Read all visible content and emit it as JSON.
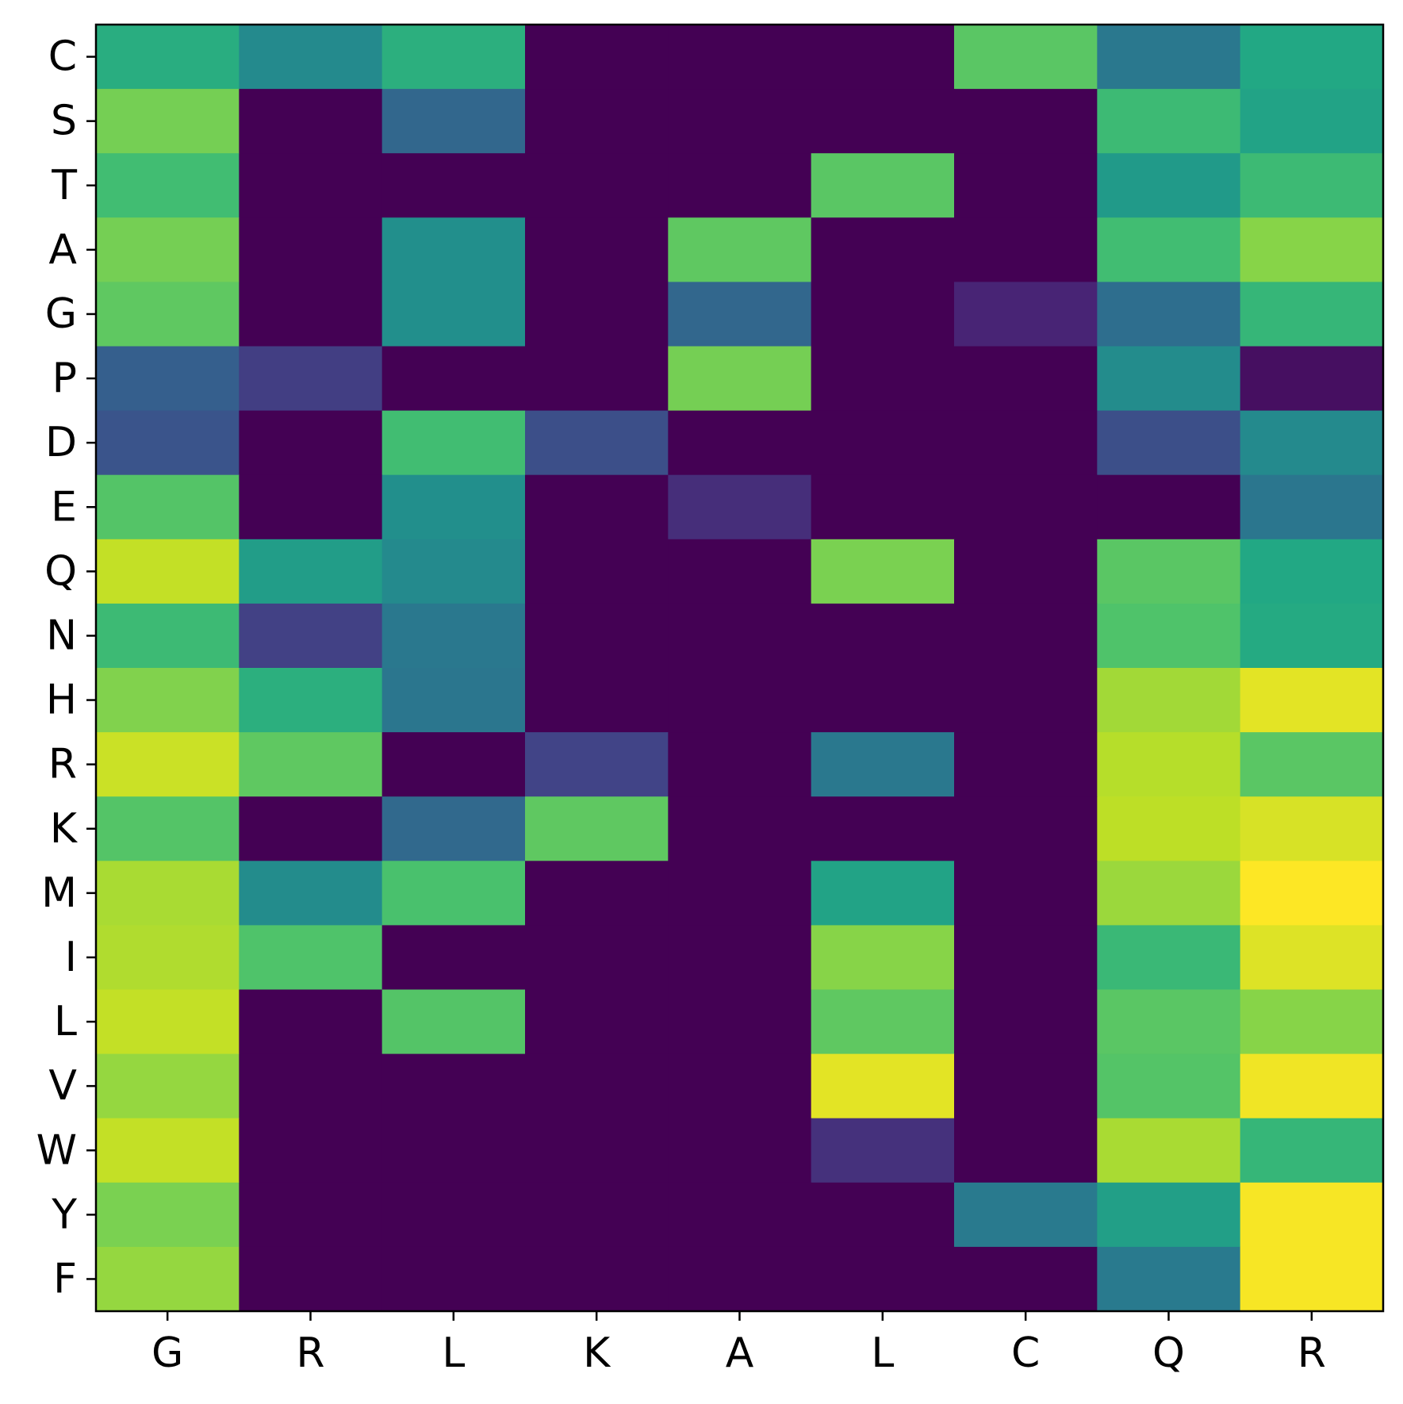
{
  "chart_data": {
    "type": "heatmap",
    "colormap": "viridis",
    "value_range": [
      0,
      1
    ],
    "title": "",
    "xlabel": "",
    "ylabel": "",
    "x_categories": [
      "G",
      "R",
      "L",
      "K",
      "A",
      "L",
      "C",
      "Q",
      "R"
    ],
    "y_categories": [
      "C",
      "S",
      "T",
      "A",
      "G",
      "P",
      "D",
      "E",
      "Q",
      "N",
      "H",
      "R",
      "K",
      "M",
      "I",
      "L",
      "V",
      "W",
      "Y",
      "F"
    ],
    "values": [
      [
        0.62,
        0.47,
        0.63,
        0.0,
        0.0,
        0.0,
        0.74,
        0.4,
        0.6
      ],
      [
        0.79,
        0.0,
        0.33,
        0.0,
        0.0,
        0.0,
        0.0,
        0.68,
        0.58
      ],
      [
        0.69,
        0.0,
        0.0,
        0.0,
        0.0,
        0.74,
        0.0,
        0.54,
        0.68
      ],
      [
        0.79,
        0.0,
        0.49,
        0.0,
        0.75,
        0.0,
        0.0,
        0.69,
        0.82
      ],
      [
        0.75,
        0.0,
        0.49,
        0.0,
        0.33,
        0.0,
        0.1,
        0.36,
        0.66
      ],
      [
        0.3,
        0.18,
        0.0,
        0.0,
        0.79,
        0.0,
        0.0,
        0.48,
        0.04
      ],
      [
        0.26,
        0.0,
        0.69,
        0.24,
        0.0,
        0.0,
        0.0,
        0.24,
        0.47
      ],
      [
        0.73,
        0.0,
        0.49,
        0.0,
        0.13,
        0.0,
        0.0,
        0.0,
        0.39
      ],
      [
        0.91,
        0.55,
        0.47,
        0.0,
        0.0,
        0.8,
        0.0,
        0.74,
        0.6
      ],
      [
        0.68,
        0.19,
        0.4,
        0.0,
        0.0,
        0.0,
        0.0,
        0.72,
        0.61
      ],
      [
        0.81,
        0.63,
        0.39,
        0.0,
        0.0,
        0.0,
        0.0,
        0.86,
        0.96
      ],
      [
        0.92,
        0.75,
        0.0,
        0.2,
        0.0,
        0.4,
        0.0,
        0.89,
        0.74
      ],
      [
        0.73,
        0.0,
        0.34,
        0.75,
        0.0,
        0.0,
        0.0,
        0.9,
        0.94
      ],
      [
        0.87,
        0.48,
        0.71,
        0.0,
        0.0,
        0.58,
        0.0,
        0.85,
        1.0
      ],
      [
        0.88,
        0.72,
        0.0,
        0.0,
        0.0,
        0.82,
        0.0,
        0.67,
        0.95
      ],
      [
        0.91,
        0.0,
        0.73,
        0.0,
        0.0,
        0.75,
        0.0,
        0.74,
        0.82
      ],
      [
        0.84,
        0.0,
        0.0,
        0.0,
        0.0,
        0.96,
        0.0,
        0.73,
        0.98
      ],
      [
        0.91,
        0.0,
        0.0,
        0.0,
        0.0,
        0.14,
        0.0,
        0.87,
        0.66
      ],
      [
        0.8,
        0.0,
        0.0,
        0.0,
        0.0,
        0.0,
        0.41,
        0.56,
        0.99
      ],
      [
        0.84,
        0.0,
        0.0,
        0.0,
        0.0,
        0.0,
        0.0,
        0.41,
        0.99
      ]
    ]
  }
}
